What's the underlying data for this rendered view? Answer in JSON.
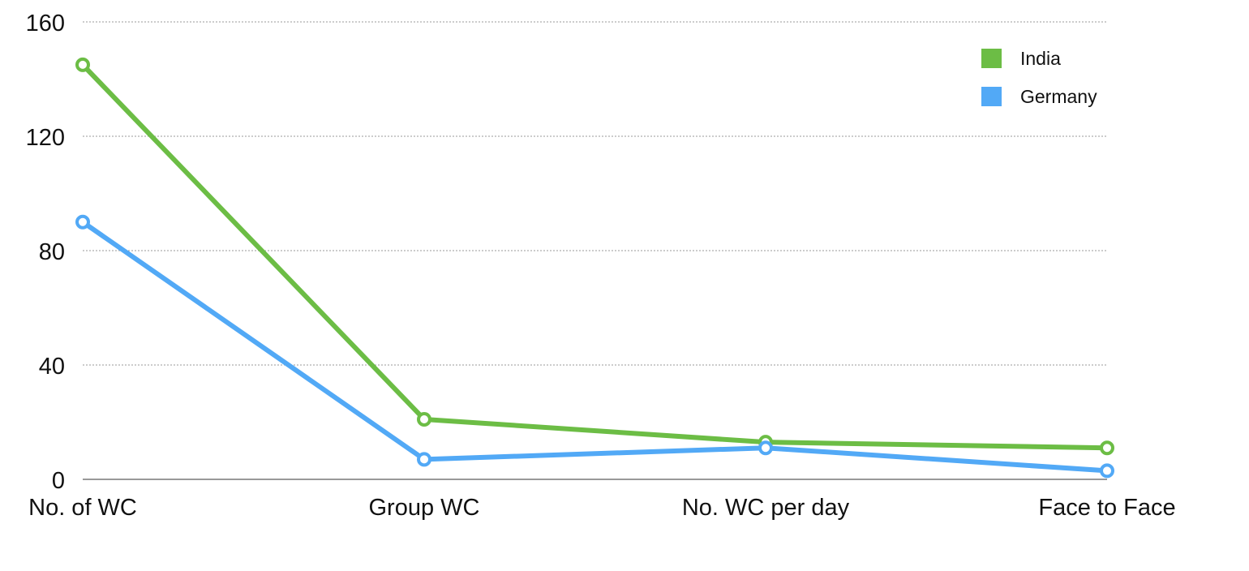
{
  "chart_data": {
    "type": "line",
    "categories": [
      "No. of WC",
      "Group WC",
      "No. WC per day",
      "Face to Face"
    ],
    "series": [
      {
        "name": "India",
        "values": [
          145,
          21,
          13,
          11
        ],
        "color": "#6cbd45"
      },
      {
        "name": "Germany",
        "values": [
          90,
          7,
          11,
          3
        ],
        "color": "#52a9f6"
      }
    ],
    "ylim": [
      0,
      160
    ],
    "yticks": [
      0,
      40,
      80,
      120,
      160
    ],
    "grid": true,
    "legend_position": "top-right"
  }
}
